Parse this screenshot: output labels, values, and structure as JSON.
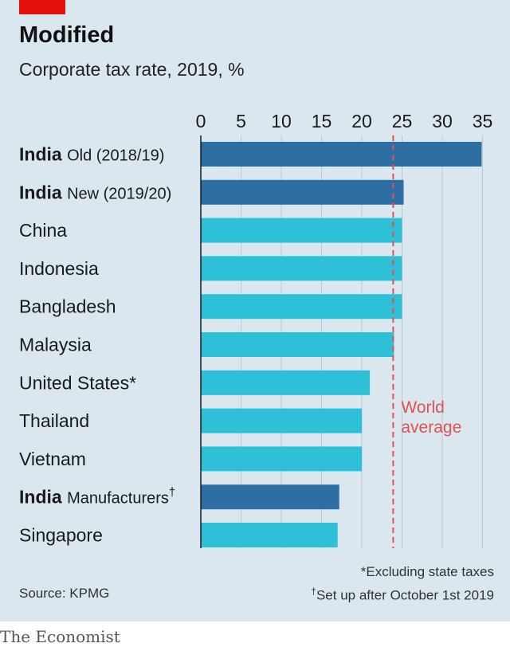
{
  "header": {
    "title": "Modified",
    "subtitle": "Corporate tax rate, 2019, %"
  },
  "footer": {
    "source": "Source: KPMG",
    "note1": "*Excluding state taxes",
    "note2_mark": "†",
    "note2": "Set up after October 1st 2019",
    "brand": "The Economist"
  },
  "colors": {
    "india": "#2d6ea3",
    "other": "#2ec0d6",
    "average_line": "#e05252",
    "panel": "#dbe7ee",
    "accent_tag": "#e3120b"
  },
  "chart_data": {
    "type": "bar",
    "orientation": "horizontal",
    "title": "Modified",
    "subtitle": "Corporate tax rate, 2019, %",
    "xlim": [
      0,
      35
    ],
    "xticks": [
      0,
      5,
      10,
      15,
      20,
      25,
      30,
      35
    ],
    "grid": true,
    "categories": [
      {
        "bold": "India",
        "label": "Old (2018/19)",
        "mark": "",
        "value": 34.9,
        "highlight": true
      },
      {
        "bold": "India",
        "label": "New (2019/20)",
        "mark": "",
        "value": 25.2,
        "highlight": true
      },
      {
        "bold": "",
        "label": "China",
        "mark": "",
        "value": 25,
        "highlight": false
      },
      {
        "bold": "",
        "label": "Indonesia",
        "mark": "",
        "value": 25,
        "highlight": false
      },
      {
        "bold": "",
        "label": "Bangladesh",
        "mark": "",
        "value": 25,
        "highlight": false
      },
      {
        "bold": "",
        "label": "Malaysia",
        "mark": "",
        "value": 24,
        "highlight": false
      },
      {
        "bold": "",
        "label": "United States*",
        "mark": "",
        "value": 21,
        "highlight": false
      },
      {
        "bold": "",
        "label": "Thailand",
        "mark": "",
        "value": 20,
        "highlight": false
      },
      {
        "bold": "",
        "label": "Vietnam",
        "mark": "",
        "value": 20,
        "highlight": false
      },
      {
        "bold": "India",
        "label": "Manufacturers",
        "mark": "†",
        "value": 17.2,
        "highlight": true
      },
      {
        "bold": "",
        "label": "Singapore",
        "mark": "",
        "value": 17,
        "highlight": false
      }
    ],
    "reference_line": {
      "value": 23.9,
      "label_lines": [
        "World",
        "average"
      ]
    }
  }
}
